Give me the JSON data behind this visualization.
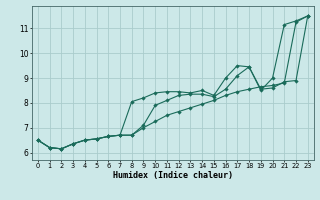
{
  "xlabel": "Humidex (Indice chaleur)",
  "background_color": "#cce8e8",
  "grid_color": "#aacccc",
  "line_color": "#1a6b5a",
  "xlim": [
    -0.5,
    23.5
  ],
  "ylim": [
    5.7,
    11.9
  ],
  "yticks": [
    6,
    7,
    8,
    9,
    10,
    11
  ],
  "xticks": [
    0,
    1,
    2,
    3,
    4,
    5,
    6,
    7,
    8,
    9,
    10,
    11,
    12,
    13,
    14,
    15,
    16,
    17,
    18,
    19,
    20,
    21,
    22,
    23
  ],
  "line1_x": [
    0,
    1,
    2,
    3,
    4,
    5,
    6,
    7,
    8,
    9,
    10,
    11,
    12,
    13,
    14,
    15,
    16,
    17,
    18,
    19,
    20,
    21,
    22,
    23
  ],
  "line1_y": [
    6.5,
    6.2,
    6.15,
    6.35,
    6.5,
    6.55,
    6.65,
    6.7,
    8.05,
    8.2,
    8.4,
    8.45,
    8.45,
    8.4,
    8.5,
    8.3,
    9.0,
    9.5,
    9.45,
    8.55,
    8.6,
    8.85,
    8.9,
    11.5
  ],
  "line2_x": [
    0,
    1,
    2,
    3,
    4,
    5,
    6,
    7,
    8,
    9,
    10,
    11,
    12,
    13,
    14,
    15,
    16,
    17,
    18,
    19,
    20,
    21,
    22,
    23
  ],
  "line2_y": [
    6.5,
    6.2,
    6.15,
    6.35,
    6.5,
    6.55,
    6.65,
    6.7,
    6.7,
    7.1,
    7.9,
    8.1,
    8.3,
    8.35,
    8.35,
    8.25,
    8.55,
    9.1,
    9.45,
    8.5,
    9.0,
    11.15,
    11.3,
    11.5
  ],
  "line3_x": [
    0,
    1,
    2,
    3,
    4,
    5,
    6,
    7,
    8,
    9,
    10,
    11,
    12,
    13,
    14,
    15,
    16,
    17,
    18,
    19,
    20,
    21,
    22,
    23
  ],
  "line3_y": [
    6.5,
    6.2,
    6.15,
    6.35,
    6.5,
    6.55,
    6.65,
    6.7,
    6.7,
    7.0,
    7.25,
    7.5,
    7.65,
    7.8,
    7.95,
    8.1,
    8.3,
    8.45,
    8.55,
    8.65,
    8.7,
    8.8,
    11.25,
    11.5
  ]
}
